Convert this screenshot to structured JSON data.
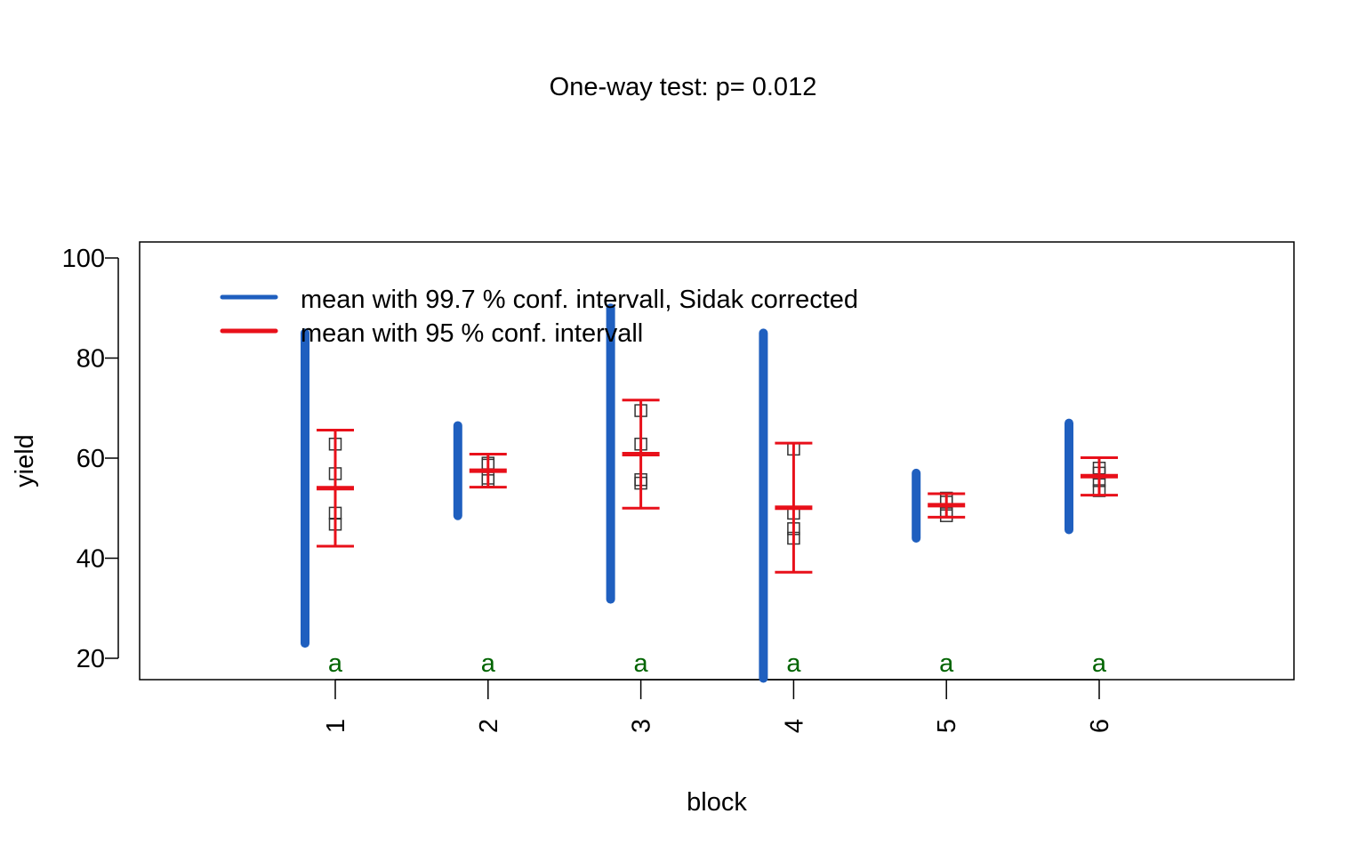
{
  "chart_data": {
    "type": "scatter",
    "title": "One-way test:  p= 0.012",
    "xlabel": "block",
    "ylabel": "yield",
    "categories": [
      "1",
      "2",
      "3",
      "4",
      "5",
      "6"
    ],
    "ylim": [
      16,
      103
    ],
    "yticks": [
      20,
      40,
      60,
      80,
      100
    ],
    "grid": false,
    "legend_position": "top-left",
    "legend": [
      {
        "label": "mean with 99.7 % conf. intervall, Sidak corrected",
        "color": "#1f5fbf"
      },
      {
        "label": "mean with 95 % conf. intervall",
        "color": "#e8101a"
      }
    ],
    "observations": [
      [
        62.8,
        56.9,
        49.0,
        46.8
      ],
      [
        59.0,
        58.6,
        56.0,
        55.5
      ],
      [
        69.5,
        62.8,
        55.7,
        55.0
      ],
      [
        61.8,
        49.0,
        45.9,
        44.0
      ],
      [
        52.0,
        51.2,
        49.5,
        48.5
      ],
      [
        58.0,
        57.0,
        55.5,
        53.5
      ]
    ],
    "means": [
      54.0,
      57.5,
      60.8,
      50.1,
      50.6,
      56.4
    ],
    "ci95_lower": [
      42.4,
      54.2,
      50.0,
      37.2,
      48.2,
      52.6
    ],
    "ci95_upper": [
      65.6,
      60.8,
      71.6,
      63.0,
      52.9,
      60.1
    ],
    "ci_sidak_lower": [
      23.0,
      48.5,
      31.8,
      16.0,
      44.0,
      45.7
    ],
    "ci_sidak_upper": [
      85.0,
      66.5,
      90.0,
      85.0,
      57.0,
      67.0
    ],
    "group_letters": [
      "a",
      "a",
      "a",
      "a",
      "a",
      "a"
    ],
    "colors": {
      "sidak": "#1f5fbf",
      "ci95": "#e8101a",
      "letters": "#006400",
      "points": "#333333"
    }
  }
}
